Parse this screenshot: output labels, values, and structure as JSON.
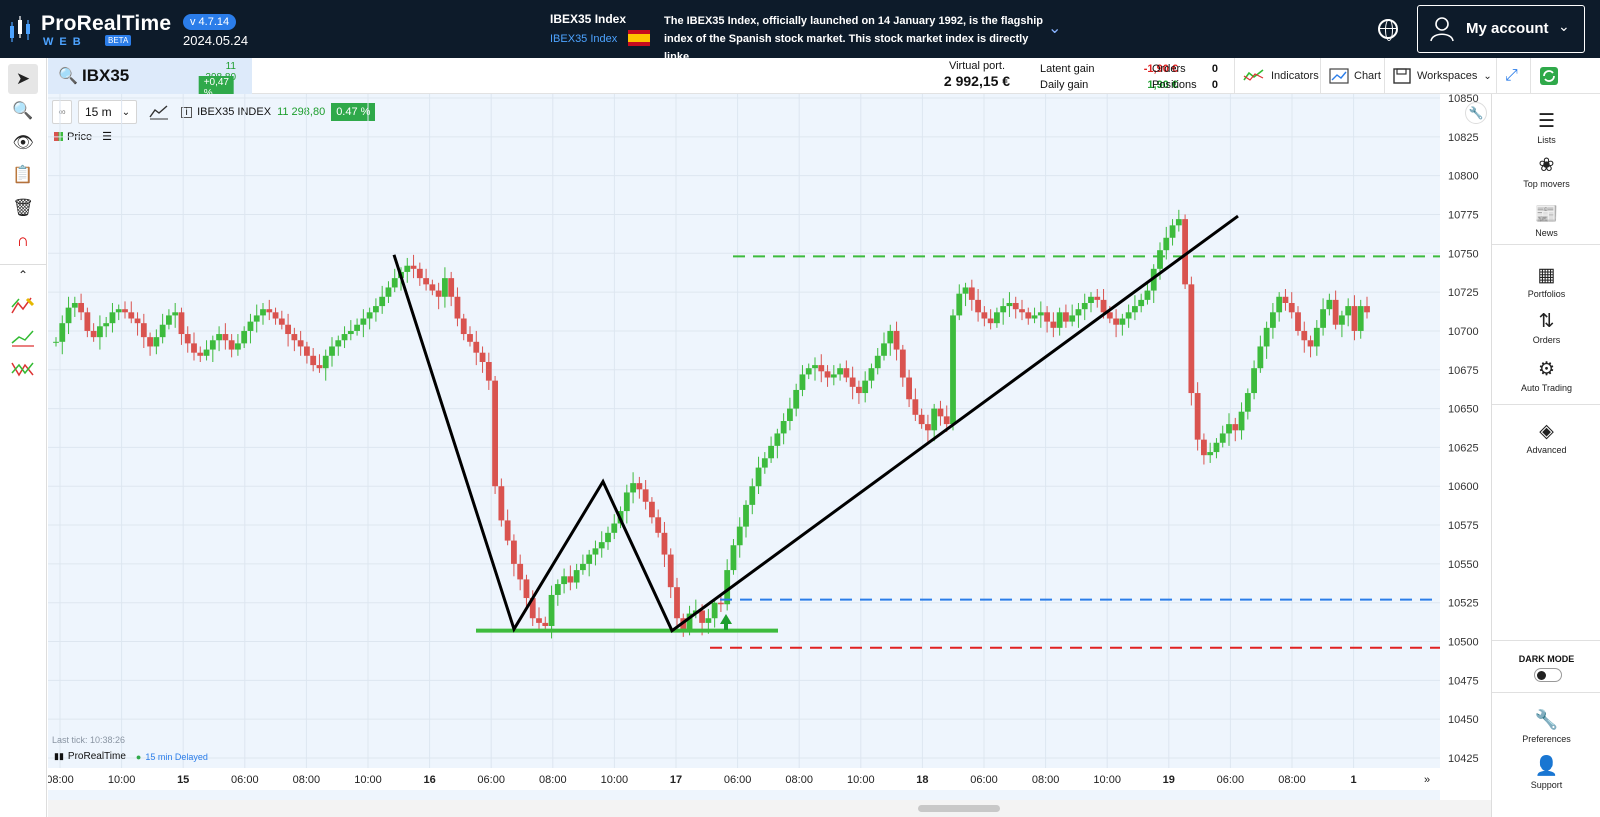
{
  "app": {
    "name": "ProRealTime",
    "web": "WEB",
    "beta": "BETA",
    "version": "v 4.7.14",
    "date": "2024.05.24"
  },
  "news": {
    "title": "IBEX35 Index",
    "subtitle": "IBEX35 Index",
    "text": "The IBEX35 Index, officially launched on 14 January 1992, is the flagship index of the Spanish stock market. This stock market index is directly linke..."
  },
  "account": {
    "label": "My account"
  },
  "symbol": {
    "name": "IBX35",
    "price": "11 298,80",
    "change": "+0,47 %"
  },
  "portfolio": {
    "virtual_label": "Virtual port.",
    "virtual_value": "2 992,15 €",
    "latent_label": "Latent gain",
    "latent_value": "-1,90 €",
    "daily_label": "Daily gain",
    "daily_value": "1,90 €",
    "orders_label": "Orders",
    "orders_value": "0",
    "positions_label": "Positions",
    "positions_value": "0"
  },
  "toolbar": {
    "indicators": "Indicators",
    "chart": "Chart",
    "workspaces": "Workspaces"
  },
  "chart_toolbar": {
    "timeframe": "15 m",
    "instrument": "IBEX35 INDEX",
    "price": "11 298,80",
    "change": "0.47 %",
    "price_label": "Price"
  },
  "chart_footer": {
    "last_tick": "Last tick: 10:38:26",
    "brand": "ProRealTime",
    "delay": "15 min Delayed"
  },
  "colors": {
    "up": "#3dbb3d",
    "down": "#d9534f",
    "accent": "#2b7de9",
    "background": "#eef5fd"
  },
  "right_panel": {
    "lists": "Lists",
    "top_movers": "Top movers",
    "news": "News",
    "portfolios": "Portfolios",
    "orders": "Orders",
    "auto_trading": "Auto Trading",
    "advanced": "Advanced",
    "dark_mode": "DARK MODE",
    "preferences": "Preferences",
    "support": "Support"
  },
  "chart_data": {
    "type": "candlestick",
    "y_ticks": [
      10850,
      10825,
      10800,
      10775,
      10750,
      10725,
      10700,
      10675,
      10650,
      10625,
      10600,
      10575,
      10550,
      10525,
      10500,
      10475,
      10450,
      10425
    ],
    "x_ticks": [
      "08:00",
      "10:00",
      "15",
      "06:00",
      "08:00",
      "10:00",
      "16",
      "06:00",
      "08:00",
      "10:00",
      "17",
      "06:00",
      "08:00",
      "10:00",
      "18",
      "06:00",
      "08:00",
      "10:00",
      "19",
      "06:00",
      "08:00",
      "1"
    ],
    "ylim": [
      10425,
      10850
    ],
    "horizontal_lines": [
      {
        "value": 10748,
        "color": "#3dbb3d",
        "style": "dashed"
      },
      {
        "value": 10527,
        "color": "#2b7de9",
        "style": "dashed"
      },
      {
        "value": 10496,
        "color": "#e02020",
        "style": "dashed"
      },
      {
        "value": 10507,
        "color": "#3dbb3d",
        "style": "solid"
      }
    ],
    "trend_points": [
      {
        "price": 10749
      },
      {
        "price": 10508
      },
      {
        "price": 10603
      },
      {
        "price": 10507
      },
      {
        "price": 10774
      }
    ],
    "closes": [
      10693,
      10705,
      10715,
      10718,
      10712,
      10700,
      10696,
      10703,
      10705,
      10712,
      10714,
      10712,
      10708,
      10705,
      10696,
      10690,
      10696,
      10704,
      10710,
      10712,
      10698,
      10692,
      10686,
      10684,
      10688,
      10694,
      10698,
      10694,
      10688,
      10692,
      10700,
      10706,
      10710,
      10714,
      10712,
      10708,
      10704,
      10698,
      10694,
      10690,
      10684,
      10678,
      10676,
      10684,
      10690,
      10694,
      10698,
      10700,
      10704,
      10708,
      10712,
      10716,
      10722,
      10728,
      10734,
      10738,
      10742,
      10740,
      10734,
      10730,
      10726,
      10722,
      10734,
      10722,
      10708,
      10698,
      10693,
      10686,
      10680,
      10668,
      10600,
      10578,
      10565,
      10550,
      10540,
      10528,
      10515,
      10512,
      10510,
      10530,
      10537,
      10542,
      10538,
      10546,
      10550,
      10556,
      10560,
      10564,
      10570,
      10576,
      10584,
      10596,
      10602,
      10598,
      10590,
      10580,
      10570,
      10556,
      10535,
      10515,
      10508,
      10518,
      10520,
      10512,
      10515,
      10525,
      10524,
      10546,
      10562,
      10574,
      10588,
      10600,
      10612,
      10618,
      10626,
      10634,
      10642,
      10650,
      10662,
      10672,
      10676,
      10678,
      10674,
      10670,
      10672,
      10676,
      10670,
      10664,
      10660,
      10668,
      10676,
      10684,
      10692,
      10700,
      10688,
      10670,
      10656,
      10646,
      10640,
      10636,
      10650,
      10645,
      10640,
      10710,
      10724,
      10728,
      10720,
      10712,
      10708,
      10705,
      10712,
      10716,
      10718,
      10714,
      10712,
      10708,
      10710,
      10712,
      10706,
      10702,
      10712,
      10706,
      10710,
      10714,
      10718,
      10722,
      10720,
      10712,
      10708,
      10704,
      10708,
      10712,
      10716,
      10720,
      10726,
      10740,
      10752,
      10760,
      10768,
      10772,
      10730,
      10660,
      10630,
      10620,
      10622,
      10628,
      10634,
      10640,
      10636,
      10648,
      10660,
      10676,
      10690,
      10702,
      10712,
      10722,
      10718,
      10712,
      10700,
      10694,
      10690,
      10702,
      10714,
      10720,
      10704,
      10710,
      10716,
      10700,
      10716,
      10712
    ]
  }
}
